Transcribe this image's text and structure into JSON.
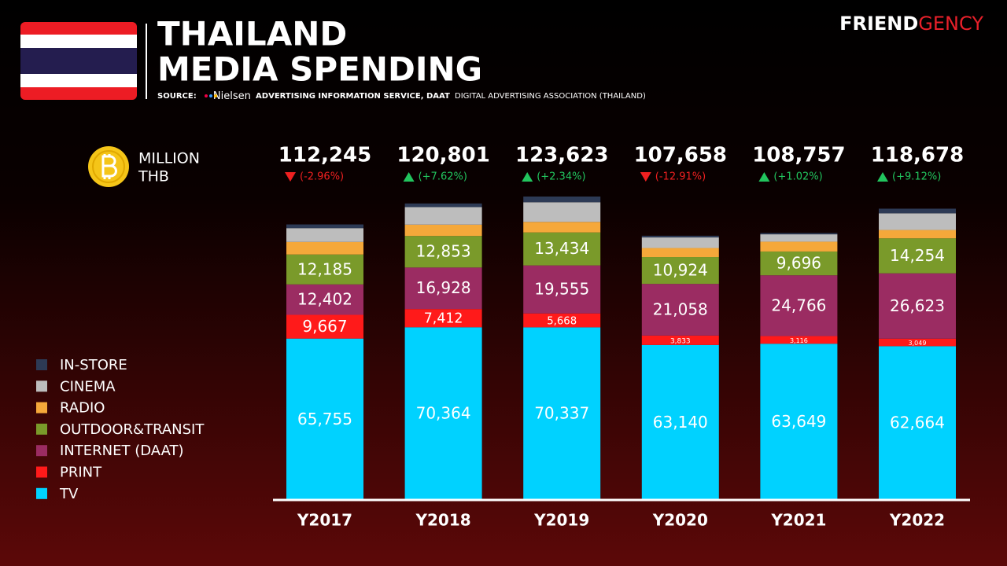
{
  "header": {
    "title_line1": "THAILAND",
    "title_line2": "MEDIA SPENDING",
    "source_prefix": "SOURCE:",
    "source_brand": "Nielsen",
    "source_bold": "ADVERTISING INFORMATION SERVICE, DAAT",
    "source_rest": "DIGITAL ADVERTISING ASSOCIATION (THAILAND)",
    "logo_part1": "FRIEND",
    "logo_part2": "GENCY"
  },
  "chart_data": {
    "type": "stacked_bar",
    "unit_line1": "MILLION",
    "unit_line2": "THB",
    "categories": [
      "Y2017",
      "Y2018",
      "Y2019",
      "Y2020",
      "Y2021",
      "Y2022"
    ],
    "totals": [
      112245,
      120801,
      123623,
      107658,
      108757,
      118678
    ],
    "total_labels": [
      "112,245",
      "120,801",
      "123,623",
      "107,658",
      "108,757",
      "118,678"
    ],
    "changes": [
      -2.96,
      7.62,
      2.34,
      -12.91,
      1.02,
      9.12
    ],
    "change_labels": [
      "(-2.96%)",
      "(+7.62%)",
      "(+2.34%)",
      "(-12.91%)",
      "(+1.02%)",
      "(+9.12%)"
    ],
    "ylim": [
      0,
      125000
    ],
    "series": [
      {
        "name": "TV",
        "color": "#00d2ff",
        "values": [
          65755,
          70364,
          70337,
          63140,
          63649,
          62664
        ],
        "value_labels": [
          "65,755",
          "70,364",
          "70,337",
          "63,140",
          "63,649",
          "62,664"
        ]
      },
      {
        "name": "PRINT",
        "color": "#ff1a1a",
        "values": [
          9667,
          7412,
          5668,
          3833,
          3116,
          3049
        ],
        "value_labels": [
          "9,667",
          "7,412",
          "5,668",
          "3,833",
          "3,116",
          "3,049"
        ]
      },
      {
        "name": "INTERNET (DAAT)",
        "color": "#9b2c62",
        "values": [
          12402,
          16928,
          19555,
          21058,
          24766,
          26623
        ],
        "value_labels": [
          "12,402",
          "16,928",
          "19,555",
          "21,058",
          "24,766",
          "26,623"
        ]
      },
      {
        "name": "OUTDOOR&TRANSIT",
        "color": "#7a9a2a",
        "values": [
          12185,
          12853,
          13434,
          10924,
          9696,
          14254
        ],
        "value_labels": [
          "12,185",
          "12,853",
          "13,434",
          "10,924",
          "9,696",
          "14,254"
        ]
      },
      {
        "name": "RADIO",
        "color": "#f5a83a",
        "values": [
          5100,
          4600,
          4300,
          3700,
          4000,
          3400
        ]
      },
      {
        "name": "CINEMA",
        "color": "#bdbdbd",
        "values": [
          5636,
          7144,
          8000,
          4300,
          3000,
          6800
        ]
      },
      {
        "name": "IN-STORE",
        "color": "#2d3a55",
        "values": [
          1500,
          1500,
          2329,
          703,
          530,
          1888
        ]
      }
    ]
  }
}
